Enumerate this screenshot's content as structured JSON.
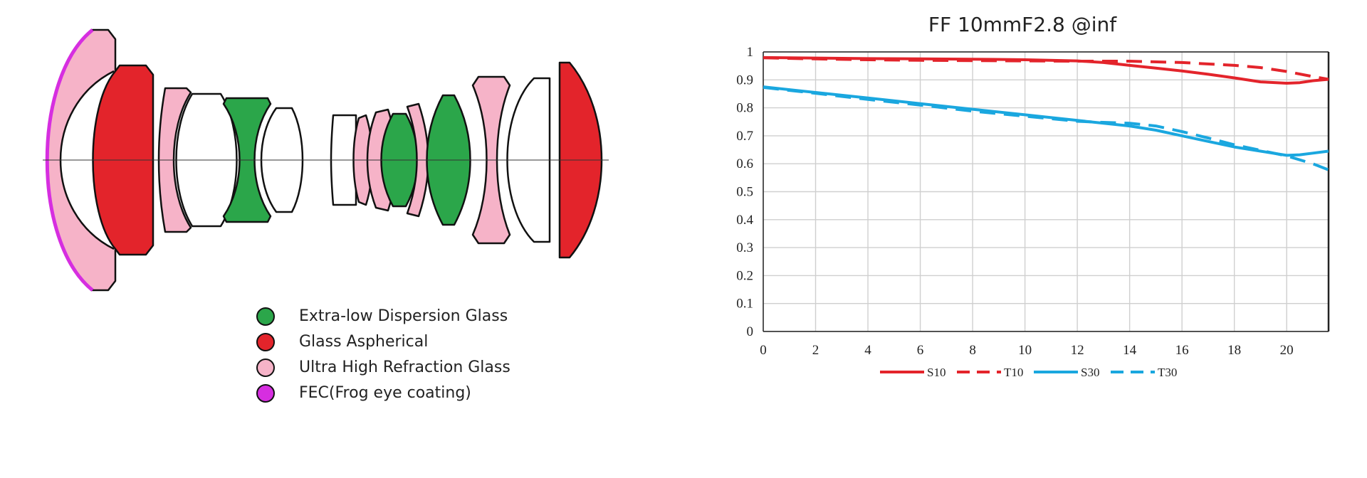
{
  "diagram_legend": [
    {
      "label": "Extra-low Dispersion Glass",
      "color": "#2ba64a"
    },
    {
      "label": "Glass Aspherical",
      "color": "#e3242b"
    },
    {
      "label": "Ultra High Refraction Glass",
      "color": "#f6b3c8"
    },
    {
      "label": "FEC(Frog eye coating)",
      "color": "#d62ee0"
    }
  ],
  "colors": {
    "ed": "#2ba64a",
    "asph": "#e3242b",
    "uhr": "#f6b3c8",
    "fec": "#d62ee0",
    "clear": "#ffffff",
    "red_series": "#e3242b",
    "blue_series": "#1aa7df"
  },
  "chart_data": {
    "type": "line",
    "title": "FF 10mmF2.8 @inf",
    "xlabel": "",
    "ylabel": "",
    "xlim": [
      0,
      21.6
    ],
    "ylim": [
      0,
      1
    ],
    "xticks": [
      0,
      2,
      4,
      6,
      8,
      10,
      12,
      14,
      16,
      18,
      20
    ],
    "yticks": [
      0,
      0.1,
      0.2,
      0.3,
      0.4,
      0.5,
      0.6,
      0.7,
      0.8,
      0.9,
      1
    ],
    "ytick_labels": [
      "0",
      "0.1",
      "0.2",
      "0.3",
      "0.4",
      "0.5",
      "0.6",
      "0.7",
      "0.8",
      "0.9",
      "1"
    ],
    "grid": true,
    "legend_position": "bottom",
    "series": [
      {
        "name": "S10",
        "style": "solid",
        "color": "#e3242b",
        "x": [
          0,
          2,
          4,
          6,
          8,
          10,
          12,
          13,
          14,
          15,
          16,
          17,
          18,
          19,
          20,
          20.5,
          21,
          21.6
        ],
        "y": [
          0.98,
          0.978,
          0.976,
          0.975,
          0.974,
          0.972,
          0.968,
          0.962,
          0.952,
          0.942,
          0.932,
          0.92,
          0.907,
          0.893,
          0.888,
          0.89,
          0.897,
          0.902
        ]
      },
      {
        "name": "T10",
        "style": "dashed",
        "color": "#e3242b",
        "x": [
          0,
          2,
          4,
          6,
          8,
          10,
          12,
          14,
          16,
          18,
          19,
          20,
          21,
          21.6
        ],
        "y": [
          0.979,
          0.975,
          0.972,
          0.97,
          0.969,
          0.968,
          0.967,
          0.967,
          0.962,
          0.952,
          0.944,
          0.93,
          0.912,
          0.902
        ]
      },
      {
        "name": "S30",
        "style": "solid",
        "color": "#1aa7df",
        "x": [
          0,
          2,
          4,
          6,
          8,
          10,
          12,
          14,
          15,
          16,
          17,
          18,
          19,
          20,
          20.5,
          21,
          21.6
        ],
        "y": [
          0.875,
          0.855,
          0.835,
          0.815,
          0.795,
          0.775,
          0.755,
          0.735,
          0.72,
          0.7,
          0.68,
          0.66,
          0.645,
          0.63,
          0.632,
          0.638,
          0.645
        ]
      },
      {
        "name": "T30",
        "style": "dashed",
        "color": "#1aa7df",
        "x": [
          0,
          2,
          4,
          6,
          8,
          10,
          12,
          13,
          14,
          15,
          16,
          17,
          18,
          19,
          20,
          21,
          21.6
        ],
        "y": [
          0.873,
          0.852,
          0.83,
          0.81,
          0.788,
          0.77,
          0.752,
          0.748,
          0.745,
          0.735,
          0.715,
          0.692,
          0.668,
          0.648,
          0.628,
          0.6,
          0.578
        ]
      }
    ]
  }
}
